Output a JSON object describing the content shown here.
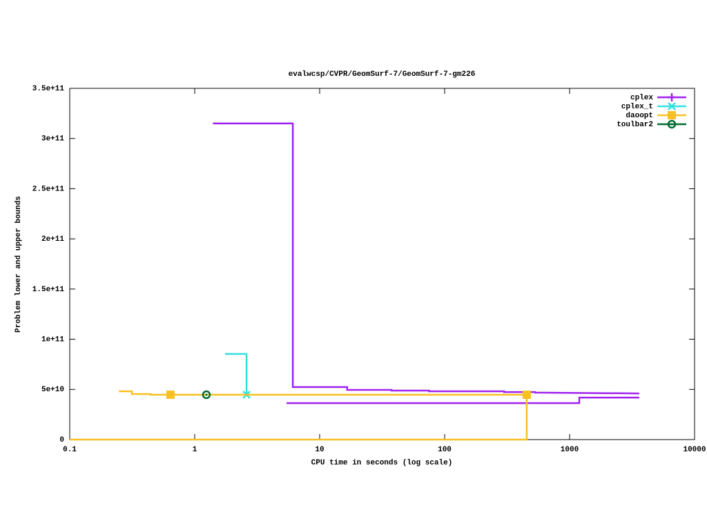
{
  "chart_data": {
    "type": "line",
    "title": "evalwcsp/CVPR/GeomSurf-7/GeomSurf-7-gm226",
    "x_label": "CPU time in seconds (log scale)",
    "y_label": "Problem lower and upper bounds",
    "xscale": "log",
    "xlim": [
      0.1,
      10000
    ],
    "xticks": [
      0.1,
      1,
      10,
      100,
      1000,
      10000
    ],
    "ylim": [
      0,
      350000000000
    ],
    "yticks": [
      0,
      {
        "value": 50000000000,
        "label": "5e+10"
      },
      {
        "value": 100000000000,
        "label": "1e+11"
      },
      {
        "value": 150000000000,
        "label": "1.5e+11"
      },
      {
        "value": 200000000000,
        "label": "2e+11"
      },
      {
        "value": 250000000000,
        "label": "2.5e+11"
      },
      {
        "value": 300000000000,
        "label": "3e+11"
      },
      {
        "value": 350000000000,
        "label": "3.5e+11"
      }
    ],
    "legend": "top-right",
    "series": [
      {
        "name": "cplex",
        "color": "#a020f0",
        "marker": "plus",
        "x": [
          1.4,
          6.1,
          6.1,
          16.6,
          16.6,
          37.6,
          37.6,
          75,
          75,
          299,
          299,
          530,
          530,
          3610,
          null,
          5.43,
          1195,
          1195,
          3610
        ],
        "values": [
          315000000000,
          315000000000,
          52300000000,
          52300000000,
          49500000000,
          49500000000,
          48800000000,
          48800000000,
          48100000000,
          48100000000,
          47400000000,
          47400000000,
          46800000000,
          46000000000,
          null,
          36400000000,
          36400000000,
          41900000000,
          41900000000
        ]
      },
      {
        "name": "cplex_t",
        "color": "#30e0e0",
        "marker": "cross",
        "x": [
          1.75,
          2.6,
          2.6
        ],
        "values": [
          85300000000,
          85300000000,
          44700000000
        ],
        "markers": {
          "x": [
            2.6
          ],
          "y": [
            44700000000
          ]
        }
      },
      {
        "name": "daoopt",
        "color": "#f8c020",
        "marker": "square",
        "x": [
          0.247,
          0.314,
          0.314,
          0.443,
          0.443,
          454,
          null,
          0.1,
          454,
          454
        ],
        "values": [
          48100000000,
          48100000000,
          45400000000,
          45400000000,
          44700000000,
          44700000000,
          null,
          0,
          0,
          44700000000
        ],
        "markers": {
          "x": [
            0.64,
            454
          ],
          "y": [
            44700000000,
            44700000000
          ]
        }
      },
      {
        "name": "toulbar2",
        "color": "#006a30",
        "marker": "circle",
        "markers": {
          "x": [
            1.24
          ],
          "y": [
            44700000000
          ]
        }
      }
    ]
  }
}
